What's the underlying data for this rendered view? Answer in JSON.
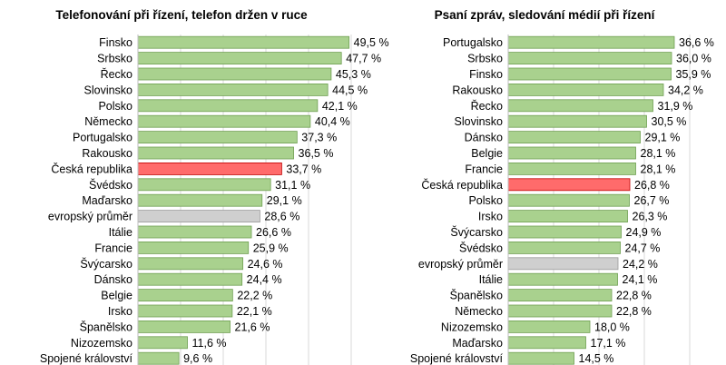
{
  "colors": {
    "bar": "#a9d18e",
    "bar_stroke": "#6f9f52",
    "highlight": "#ff6b6b",
    "highlight_stroke": "#c00000",
    "average": "#cfcfcf",
    "average_stroke": "#9a9a9a",
    "grid": "#d9d9d9",
    "text": "#000000"
  },
  "chart_data": [
    {
      "type": "bar",
      "orientation": "horizontal",
      "title": "Telefonování při řízení, telefon držen v ruce",
      "xlim": [
        0,
        50
      ],
      "grid": true,
      "categories": [
        "Finsko",
        "Srbsko",
        "Řecko",
        "Slovinsko",
        "Polsko",
        "Německo",
        "Portugalsko",
        "Rakousko",
        "Česká republika",
        "Švédsko",
        "Maďarsko",
        "evropský průměr",
        "Itálie",
        "Francie",
        "Švýcarsko",
        "Dánsko",
        "Belgie",
        "Irsko",
        "Španělsko",
        "Nizozemsko",
        "Spojené království"
      ],
      "values": [
        49.5,
        47.7,
        45.3,
        44.5,
        42.1,
        40.4,
        37.3,
        36.5,
        33.7,
        31.1,
        29.1,
        28.6,
        26.6,
        25.9,
        24.6,
        24.4,
        22.2,
        22.1,
        21.6,
        11.6,
        9.6
      ],
      "labels": [
        "49,5 %",
        "47,7 %",
        "45,3 %",
        "44,5 %",
        "42,1 %",
        "40,4 %",
        "37,3 %",
        "36,5 %",
        "33,7 %",
        "31,1 %",
        "29,1 %",
        "28,6 %",
        "26,6 %",
        "25,9 %",
        "24,6 %",
        "24,4 %",
        "22,2 %",
        "22,1 %",
        "21,6 %",
        "11,6 %",
        "9,6 %"
      ],
      "highlight": "Česká republika",
      "average": "evropský průměr"
    },
    {
      "type": "bar",
      "orientation": "horizontal",
      "title": "Psaní zpráv, sledování médií při řízení",
      "xlim": [
        0,
        40
      ],
      "grid": true,
      "categories": [
        "Portugalsko",
        "Srbsko",
        "Finsko",
        "Rakousko",
        "Řecko",
        "Slovinsko",
        "Dánsko",
        "Belgie",
        "Francie",
        "Česká republika",
        "Polsko",
        "Irsko",
        "Švýcarsko",
        "Švédsko",
        "evropský průměr",
        "Itálie",
        "Španělsko",
        "Německo",
        "Nizozemsko",
        "Maďarsko",
        "Spojené království"
      ],
      "values": [
        36.6,
        36.0,
        35.9,
        34.2,
        31.9,
        30.5,
        29.1,
        28.1,
        28.1,
        26.8,
        26.7,
        26.3,
        24.9,
        24.7,
        24.2,
        24.1,
        22.8,
        22.8,
        18.0,
        17.1,
        14.5
      ],
      "labels": [
        "36,6 %",
        "36,0 %",
        "35,9 %",
        "34,2 %",
        "31,9 %",
        "30,5 %",
        "29,1 %",
        "28,1 %",
        "28,1 %",
        "26,8 %",
        "26,7 %",
        "26,3 %",
        "24,9 %",
        "24,7 %",
        "24,2 %",
        "24,1 %",
        "22,8 %",
        "22,8 %",
        "18,0 %",
        "17,1 %",
        "14,5 %"
      ],
      "highlight": "Česká republika",
      "average": "evropský průměr"
    }
  ]
}
